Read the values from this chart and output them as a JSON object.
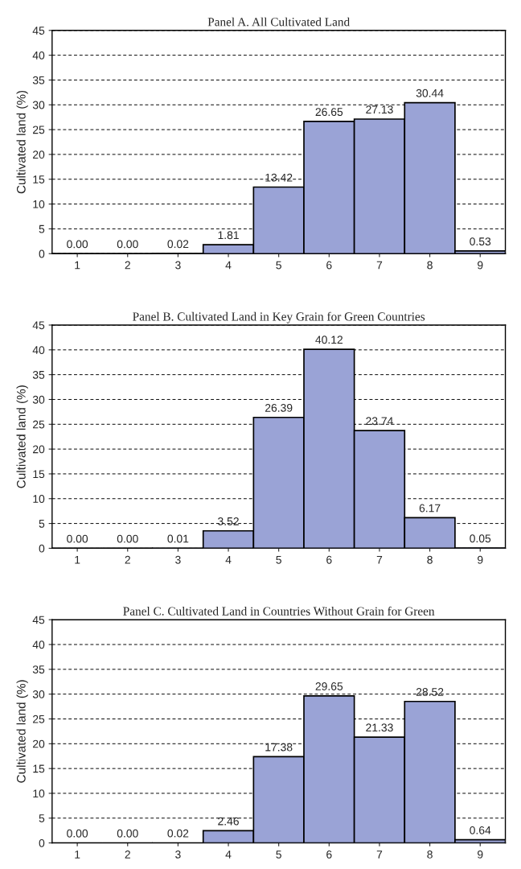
{
  "chart_data": [
    {
      "type": "bar",
      "title": "Panel A. All Cultivated Land",
      "ylabel": "Cultivated land (%)",
      "categories": [
        "1",
        "2",
        "3",
        "4",
        "5",
        "6",
        "7",
        "8",
        "9"
      ],
      "values": [
        0.0,
        0.0,
        0.02,
        1.81,
        13.42,
        26.65,
        27.13,
        30.44,
        0.53
      ],
      "value_labels": [
        "0.00",
        "0.00",
        "0.02",
        "1.81",
        "13.42",
        "26.65",
        "27.13",
        "30.44",
        "0.53"
      ],
      "color": "#9aa3d6",
      "ylim": [
        0,
        45
      ],
      "yticks": [
        0,
        5,
        10,
        15,
        20,
        25,
        30,
        35,
        40,
        45
      ],
      "grid": "y"
    },
    {
      "type": "bar",
      "title": "Panel B. Cultivated Land in Key Grain for Green Countries",
      "ylabel": "Cultivated land (%)",
      "categories": [
        "1",
        "2",
        "3",
        "4",
        "5",
        "6",
        "7",
        "8",
        "9"
      ],
      "values": [
        0.0,
        0.0,
        0.01,
        3.52,
        26.39,
        40.12,
        23.74,
        6.17,
        0.05
      ],
      "value_labels": [
        "0.00",
        "0.00",
        "0.01",
        "3.52",
        "26.39",
        "40.12",
        "23.74",
        "6.17",
        "0.05"
      ],
      "color": "#9aa3d6",
      "ylim": [
        0,
        45
      ],
      "yticks": [
        0,
        5,
        10,
        15,
        20,
        25,
        30,
        35,
        40,
        45
      ],
      "grid": "y"
    },
    {
      "type": "bar",
      "title": "Panel C. Cultivated Land in Countries Without Grain for Green",
      "ylabel": "Cultivated land (%)",
      "categories": [
        "1",
        "2",
        "3",
        "4",
        "5",
        "6",
        "7",
        "8",
        "9"
      ],
      "values": [
        0.0,
        0.0,
        0.02,
        2.46,
        17.38,
        29.65,
        21.33,
        28.52,
        0.64
      ],
      "value_labels": [
        "0.00",
        "0.00",
        "0.02",
        "2.46",
        "17.38",
        "29.65",
        "21.33",
        "28.52",
        "0.64"
      ],
      "color": "#9aa3d6",
      "ylim": [
        0,
        45
      ],
      "yticks": [
        0,
        5,
        10,
        15,
        20,
        25,
        30,
        35,
        40,
        45
      ],
      "grid": "y"
    }
  ]
}
